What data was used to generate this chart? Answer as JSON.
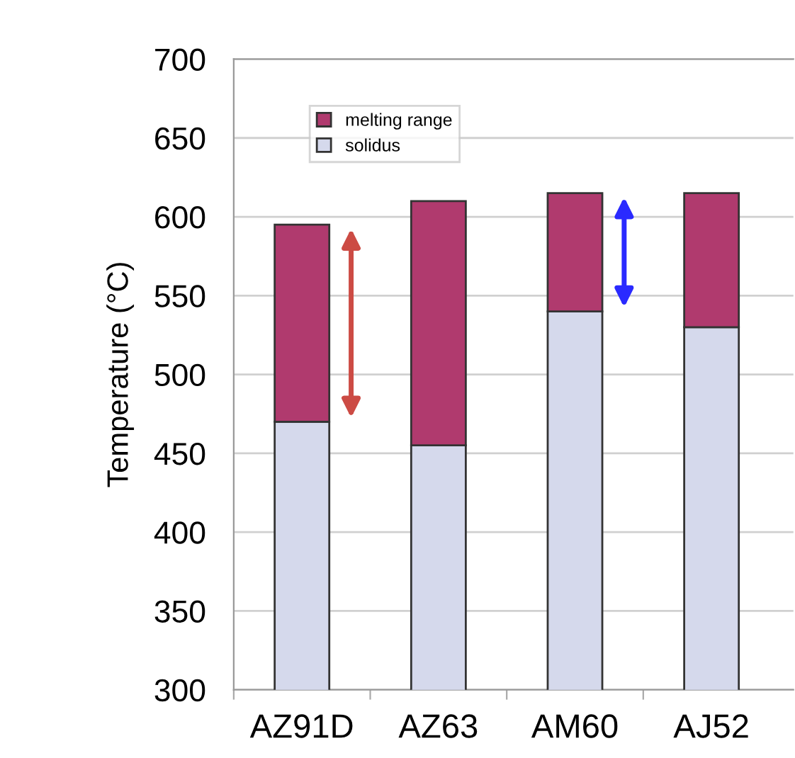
{
  "chart_data": {
    "type": "bar",
    "stacked": true,
    "ylabel": "Temperature (°C)",
    "categories": [
      "AZ91D",
      "AZ63",
      "AM60",
      "AJ52"
    ],
    "series": [
      {
        "name": "solidus",
        "color": "#d5d9ec",
        "values": [
          470,
          455,
          540,
          530
        ]
      },
      {
        "name": "melting range",
        "color": "#b03a6e",
        "base": [
          470,
          455,
          540,
          530
        ],
        "values": [
          125,
          155,
          75,
          85
        ]
      }
    ],
    "ylim": [
      300,
      700
    ],
    "yticks": [
      300,
      350,
      400,
      450,
      500,
      550,
      600,
      650,
      700
    ],
    "grid": "y",
    "legend": "top left"
  }
}
